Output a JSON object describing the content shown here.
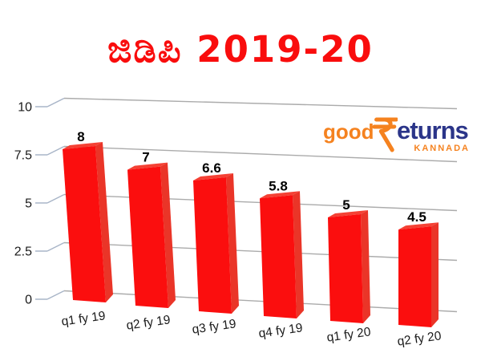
{
  "page": {
    "background": "#FFFFFF"
  },
  "title": {
    "text": "ಜಿಡಿಪಿ 2019-20",
    "color": "#F90D0D"
  },
  "logo": {
    "good": "good",
    "rupee_symbol": "₹",
    "eturns": "eturns",
    "subtext": "KANNADA",
    "orange": "#F5821F",
    "navy": "#2B3589"
  },
  "chart_data": {
    "type": "bar",
    "style": "3d-perspective",
    "title": "ಜಿಡಿಪಿ 2019-20",
    "categories": [
      "q1 fy 19",
      "q2 fy 19",
      "q3 fy 19",
      "q4 fy 19",
      "q1 fy 20",
      "q2 fy 20"
    ],
    "values": [
      8,
      7,
      6.6,
      5.8,
      5,
      4.5
    ],
    "value_labels": [
      "8",
      "7",
      "6.6",
      "5.8",
      "5",
      "4.5"
    ],
    "y_ticks": [
      0,
      2.5,
      5,
      7.5,
      10
    ],
    "y_tick_labels": [
      "0",
      "2.5",
      "5",
      "7.5",
      "10"
    ],
    "ylim": [
      0,
      10
    ],
    "xlabel": "",
    "ylabel": "",
    "grid": true,
    "legend": "none",
    "bar_color_front": "#FB0E0E",
    "bar_color_top": "#F44134",
    "bar_color_side": "#EA3528",
    "grid_color": "#ABABAB",
    "axis_tick_color": "#A9B5C8",
    "label_color": "#1A1A1A",
    "value_label_color": "#000000"
  }
}
